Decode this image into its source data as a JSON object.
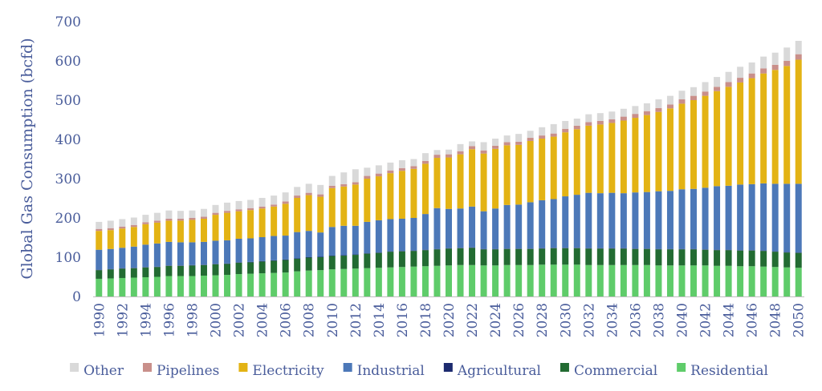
{
  "chart_data": {
    "type": "bar",
    "stacked": true,
    "ylabel": "Global Gas Consumption (bcfd)",
    "xlabel": "",
    "ylim": [
      0,
      700
    ],
    "yticks": [
      0,
      100,
      200,
      300,
      400,
      500,
      600,
      700
    ],
    "x_tick_labels": [
      "1990",
      "1992",
      "1994",
      "1996",
      "1998",
      "2000",
      "2002",
      "2004",
      "2006",
      "2008",
      "2010",
      "2012",
      "2014",
      "2016",
      "2018",
      "2020",
      "2022",
      "2024",
      "2026",
      "2028",
      "2030",
      "2032",
      "2034",
      "2036",
      "2038",
      "2040",
      "2042",
      "2044",
      "2046",
      "2048",
      "2050"
    ],
    "grid": false,
    "legend_position": "bottom",
    "categories": [
      1990,
      1991,
      1992,
      1993,
      1994,
      1995,
      1996,
      1997,
      1998,
      1999,
      2000,
      2001,
      2002,
      2003,
      2004,
      2005,
      2006,
      2007,
      2008,
      2009,
      2010,
      2011,
      2012,
      2013,
      2014,
      2015,
      2016,
      2017,
      2018,
      2019,
      2020,
      2021,
      2022,
      2023,
      2024,
      2025,
      2026,
      2027,
      2028,
      2029,
      2030,
      2031,
      2032,
      2033,
      2034,
      2035,
      2036,
      2037,
      2038,
      2039,
      2040,
      2041,
      2042,
      2043,
      2044,
      2045,
      2046,
      2047,
      2048,
      2049,
      2050
    ],
    "series": [
      {
        "name": "Residential",
        "color": "#5fcc6a",
        "values": [
          45,
          46,
          47,
          48,
          49,
          50,
          52,
          52,
          52,
          53,
          54,
          55,
          57,
          58,
          59,
          60,
          61,
          64,
          66,
          67,
          69,
          70,
          71,
          72,
          73,
          74,
          75,
          76,
          77,
          78,
          79,
          80,
          80,
          79,
          79,
          80,
          80,
          80,
          81,
          81,
          81,
          81,
          80,
          80,
          80,
          80,
          80,
          80,
          79,
          79,
          79,
          79,
          79,
          78,
          78,
          77,
          77,
          76,
          75,
          74,
          73
        ]
      },
      {
        "name": "Commercial",
        "color": "#226b32",
        "values": [
          22,
          23,
          24,
          24,
          25,
          25,
          26,
          26,
          27,
          27,
          28,
          28,
          29,
          29,
          30,
          31,
          32,
          32,
          33,
          33,
          34,
          34,
          35,
          37,
          38,
          40,
          40,
          40,
          41,
          42,
          43,
          43,
          44,
          41,
          41,
          41,
          41,
          41,
          41,
          42,
          42,
          42,
          42,
          42,
          42,
          42,
          41,
          41,
          41,
          41,
          41,
          41,
          40,
          40,
          40,
          40,
          40,
          40,
          39,
          38,
          38
        ]
      },
      {
        "name": "Agricultural",
        "color": "#1c2a6e",
        "values": [
          1,
          1,
          1,
          1,
          1,
          1,
          1,
          1,
          1,
          1,
          1,
          1,
          1,
          1,
          1,
          1,
          1,
          1,
          1,
          1,
          1,
          1,
          1,
          1,
          1,
          1,
          1,
          1,
          1,
          1,
          1,
          1,
          1,
          1,
          1,
          1,
          1,
          1,
          1,
          1,
          1,
          1,
          1,
          1,
          1,
          1,
          1,
          1,
          1,
          1,
          1,
          1,
          1,
          1,
          1,
          1,
          1,
          1,
          1,
          1,
          1
        ]
      },
      {
        "name": "Industrial",
        "color": "#4c78b8",
        "values": [
          51,
          51,
          52,
          54,
          57,
          59,
          60,
          59,
          58,
          58,
          59,
          59,
          60,
          60,
          61,
          62,
          61,
          67,
          67,
          62,
          73,
          75,
          73,
          80,
          82,
          82,
          82,
          83,
          91,
          104,
          100,
          100,
          104,
          96,
          103,
          111,
          112,
          118,
          122,
          124,
          131,
          135,
          141,
          140,
          141,
          140,
          143,
          144,
          147,
          148,
          152,
          153,
          157,
          162,
          163,
          167,
          168,
          171,
          172,
          174,
          175
        ]
      },
      {
        "name": "Electricity",
        "color": "#e3b314",
        "values": [
          48,
          48,
          49,
          50,
          52,
          53,
          54,
          55,
          57,
          59,
          66,
          70,
          70,
          72,
          73,
          75,
          81,
          87,
          91,
          91,
          99,
          100,
          105,
          110,
          112,
          117,
          122,
          125,
          128,
          128,
          131,
          138,
          146,
          147,
          152,
          152,
          152,
          156,
          157,
          159,
          163,
          167,
          171,
          175,
          178,
          185,
          190,
          196,
          202,
          210,
          218,
          226,
          234,
          242,
          252,
          260,
          270,
          280,
          290,
          300,
          316
        ]
      },
      {
        "name": "Pipelines",
        "color": "#c98f8a",
        "values": [
          5,
          5,
          5,
          5,
          5,
          5,
          5,
          5,
          5,
          5,
          5,
          5,
          5,
          5,
          5,
          5,
          6,
          6,
          6,
          6,
          6,
          6,
          6,
          7,
          7,
          7,
          7,
          7,
          7,
          8,
          8,
          8,
          8,
          8,
          8,
          8,
          8,
          8,
          8,
          8,
          9,
          9,
          9,
          9,
          9,
          10,
          10,
          10,
          10,
          10,
          11,
          11,
          11,
          11,
          12,
          12,
          12,
          13,
          13,
          13,
          14
        ]
      },
      {
        "name": "Other",
        "color": "#d9d9d9",
        "values": [
          18,
          19,
          19,
          19,
          19,
          20,
          21,
          20,
          19,
          20,
          20,
          21,
          21,
          21,
          22,
          23,
          23,
          22,
          23,
          24,
          25,
          30,
          33,
          21,
          21,
          20,
          20,
          18,
          20,
          12,
          12,
          18,
          12,
          21,
          18,
          17,
          20,
          18,
          21,
          24,
          20,
          18,
          20,
          20,
          20,
          20,
          20,
          20,
          22,
          22,
          22,
          22,
          24,
          25,
          26,
          28,
          28,
          30,
          31,
          34,
          34
        ]
      }
    ],
    "legend_order": [
      "Other",
      "Pipelines",
      "Electricity",
      "Industrial",
      "Agricultural",
      "Commercial",
      "Residential"
    ]
  }
}
